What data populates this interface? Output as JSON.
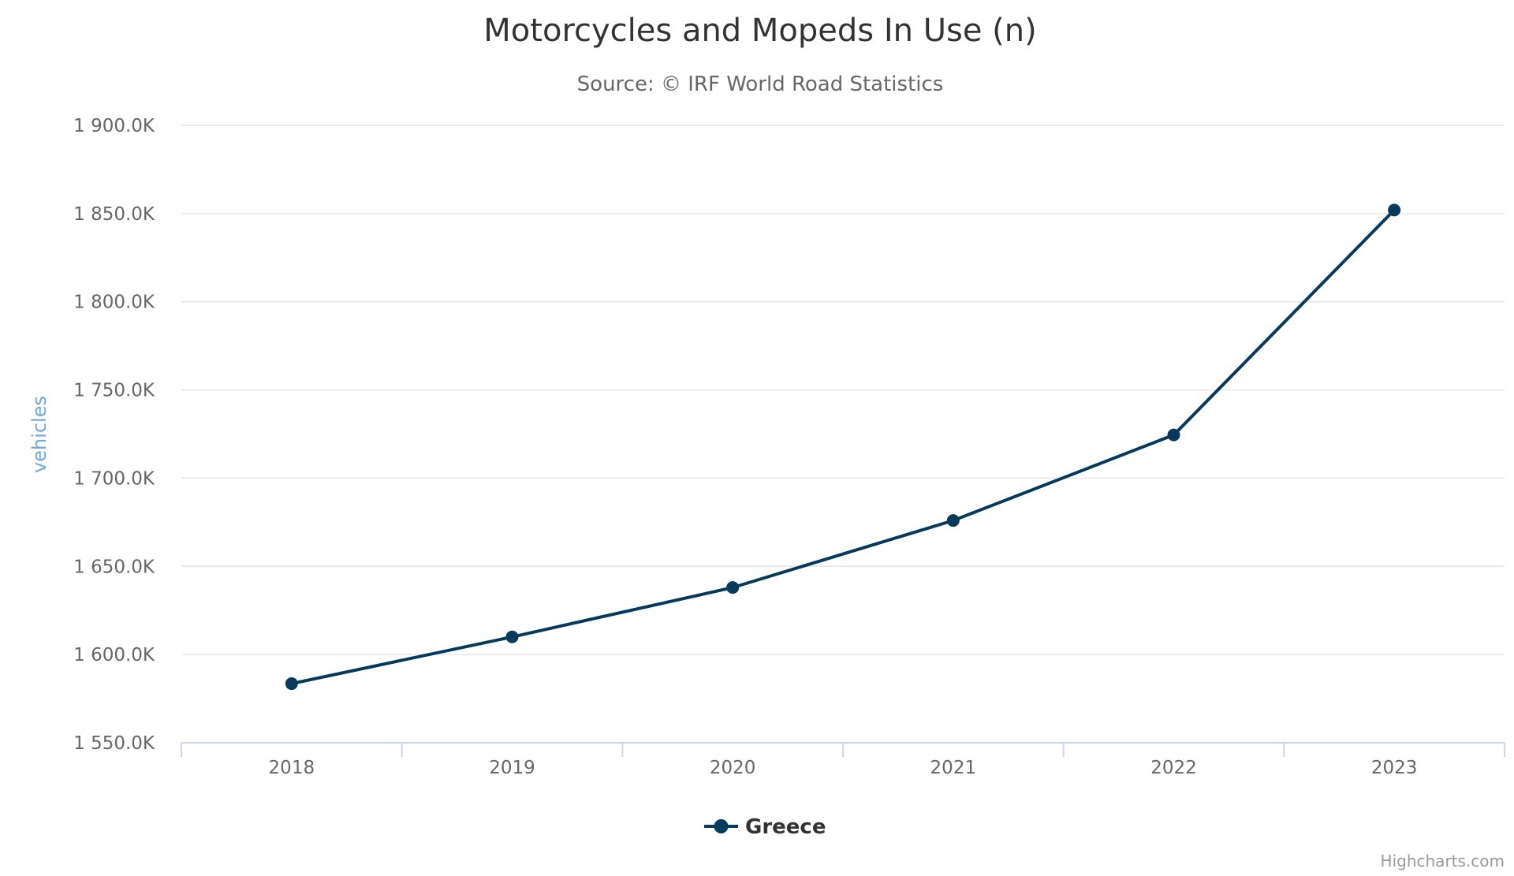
{
  "chart_data": {
    "type": "line",
    "title": "Motorcycles and Mopeds In Use (n)",
    "subtitle": "Source: © IRF World Road Statistics",
    "xlabel": "",
    "ylabel": "vehicles",
    "categories": [
      "2018",
      "2019",
      "2020",
      "2021",
      "2022",
      "2023"
    ],
    "series": [
      {
        "name": "Greece",
        "values": [
          1583500,
          1610000,
          1638000,
          1676000,
          1724500,
          1852000
        ],
        "color": "#063a5c"
      }
    ],
    "ylim": [
      1550000,
      1900000
    ],
    "ytick_values": [
      1550000,
      1600000,
      1650000,
      1700000,
      1750000,
      1800000,
      1850000,
      1900000
    ],
    "ytick_labels": [
      "1 550.0K",
      "1 600.0K",
      "1 650.0K",
      "1 700.0K",
      "1 750.0K",
      "1 800.0K",
      "1 850.0K",
      "1 900.0K"
    ],
    "grid": true,
    "legend_position": "bottom-center",
    "credit": "Highcharts.com",
    "colors": {
      "gridline": "#e6e6e6",
      "axis_line": "#ccd6eb",
      "axis_title": "#6ca9d9",
      "series": "#063a5c"
    }
  }
}
